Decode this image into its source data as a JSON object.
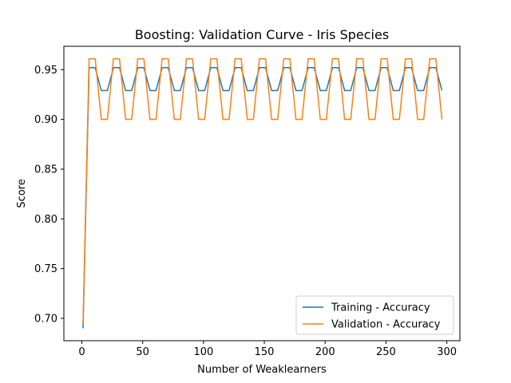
{
  "chart_data": {
    "type": "line",
    "title": "Boosting: Validation Curve - Iris Species",
    "xlabel": "Number of Weaklearners",
    "ylabel": "Score",
    "xlim": [
      -14.75,
      310.75
    ],
    "ylim": [
      0.6775,
      0.9735
    ],
    "xticks": [
      0,
      50,
      100,
      150,
      200,
      250,
      300
    ],
    "xtick_labels": [
      "0",
      "50",
      "100",
      "150",
      "200",
      "250",
      "300"
    ],
    "yticks": [
      0.7,
      0.75,
      0.8,
      0.85,
      0.9,
      0.95
    ],
    "ytick_labels": [
      "0.70",
      "0.75",
      "0.80",
      "0.85",
      "0.90",
      "0.95"
    ],
    "grid": false,
    "legend_position": "lower-right",
    "x": [
      1,
      6,
      11,
      16,
      21,
      26,
      31,
      36,
      41,
      46,
      51,
      56,
      61,
      66,
      71,
      76,
      81,
      86,
      91,
      96,
      101,
      106,
      111,
      116,
      121,
      126,
      131,
      136,
      141,
      146,
      151,
      156,
      161,
      166,
      171,
      176,
      181,
      186,
      191,
      196,
      201,
      206,
      211,
      216,
      221,
      226,
      231,
      236,
      241,
      246,
      251,
      256,
      261,
      266,
      271,
      276,
      281,
      286,
      291,
      296
    ],
    "series": [
      {
        "name": "Training - Accuracy",
        "color": "#1f77b4",
        "values": [
          0.69,
          0.952,
          0.952,
          0.929,
          0.929,
          0.952,
          0.952,
          0.929,
          0.929,
          0.952,
          0.952,
          0.929,
          0.929,
          0.952,
          0.952,
          0.929,
          0.929,
          0.952,
          0.952,
          0.929,
          0.929,
          0.952,
          0.952,
          0.929,
          0.929,
          0.952,
          0.952,
          0.929,
          0.929,
          0.952,
          0.952,
          0.929,
          0.929,
          0.952,
          0.952,
          0.929,
          0.929,
          0.952,
          0.952,
          0.929,
          0.929,
          0.952,
          0.952,
          0.929,
          0.929,
          0.952,
          0.952,
          0.929,
          0.929,
          0.952,
          0.952,
          0.929,
          0.929,
          0.952,
          0.952,
          0.929,
          0.929,
          0.952,
          0.952,
          0.929
        ]
      },
      {
        "name": "Validation - Accuracy",
        "color": "#ff7f0e",
        "values": [
          0.695,
          0.961,
          0.961,
          0.9,
          0.9,
          0.961,
          0.961,
          0.9,
          0.9,
          0.961,
          0.961,
          0.9,
          0.9,
          0.961,
          0.961,
          0.9,
          0.9,
          0.961,
          0.961,
          0.9,
          0.9,
          0.961,
          0.961,
          0.9,
          0.9,
          0.961,
          0.961,
          0.9,
          0.9,
          0.961,
          0.961,
          0.9,
          0.9,
          0.961,
          0.961,
          0.9,
          0.9,
          0.961,
          0.961,
          0.9,
          0.9,
          0.961,
          0.961,
          0.9,
          0.9,
          0.961,
          0.961,
          0.9,
          0.9,
          0.961,
          0.961,
          0.9,
          0.9,
          0.961,
          0.961,
          0.9,
          0.9,
          0.961,
          0.961,
          0.9
        ]
      }
    ]
  }
}
